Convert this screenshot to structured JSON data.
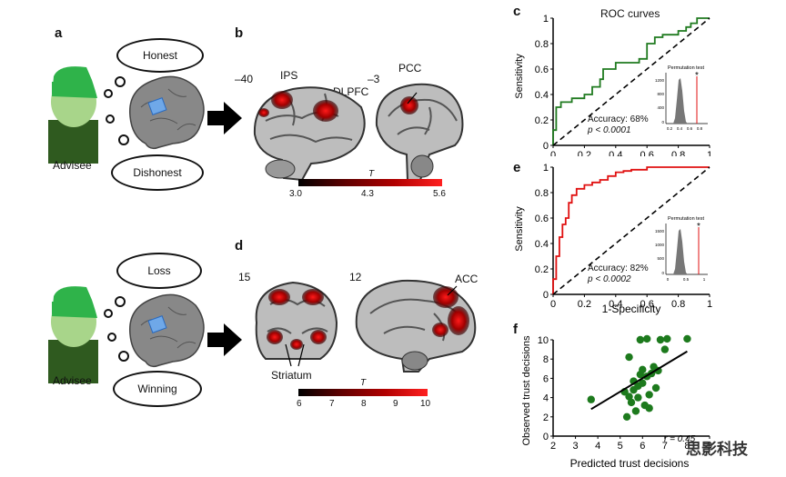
{
  "panels": {
    "a": {
      "label": "a",
      "advisee": "Advisee",
      "thought_top": "Honest",
      "thought_bottom": "Dishonest"
    },
    "a2": {
      "advisee": "Advisee",
      "thought_top": "Loss",
      "thought_bottom": "Winning"
    },
    "b": {
      "label": "b",
      "slice_left": "–40",
      "slice_right": "–3",
      "regions": [
        "IPS",
        "DLPFC",
        "PCC"
      ],
      "colorbar": {
        "title": "T",
        "ticks": [
          "3.0",
          "4.3",
          "5.6"
        ]
      }
    },
    "d": {
      "label": "d",
      "slice_left": "15",
      "slice_right": "12",
      "regions": [
        "Striatum",
        "ACC"
      ],
      "colorbar": {
        "title": "T",
        "ticks": [
          "6",
          "7",
          "8",
          "9",
          "10"
        ]
      }
    },
    "c": {
      "label": "c",
      "title": "ROC curves",
      "ylabel": "Sensitivity",
      "accuracy": "Accuracy: 68%",
      "pvalue": "p < 0.0001",
      "perm_title": "Permutation test",
      "perm_yticks": [
        "1200",
        "800",
        "400",
        "0"
      ],
      "perm_xticks": [
        "0.2",
        "0.4",
        "0.6",
        "0.8"
      ],
      "star": "*",
      "color": "#1f7a1f"
    },
    "e": {
      "label": "e",
      "ylabel": "Sensitivity",
      "xlabel": "1-Specificity",
      "accuracy": "Accuracy: 82%",
      "pvalue": "p < 0.0002",
      "perm_title": "Permutation test",
      "perm_yticks": [
        "1500",
        "1000",
        "500",
        "0"
      ],
      "perm_xticks": [
        "0",
        "0.5",
        "1"
      ],
      "star": "*",
      "color": "#e01010"
    },
    "f": {
      "label": "f",
      "r_text": "r = 0.45",
      "ylabel": "Observed trust decisions",
      "xlabel": "Predicted trust decisions",
      "color": "#1d7a1d"
    }
  },
  "watermark": "思影科技",
  "chart_data": [
    {
      "type": "line",
      "panel": "c",
      "title": "ROC curves",
      "xlabel": "",
      "ylabel": "Sensitivity",
      "xlim": [
        0,
        1
      ],
      "ylim": [
        0,
        1
      ],
      "xticks": [
        "0",
        "0.2",
        "0.4",
        "0.6",
        "0.8",
        "1"
      ],
      "yticks": [
        "0",
        "0.2",
        "0.4",
        "0.6",
        "0.8",
        "1"
      ],
      "series": [
        {
          "x": [
            0,
            0,
            0.02,
            0.02,
            0.05,
            0.05,
            0.12,
            0.12,
            0.2,
            0.2,
            0.25,
            0.25,
            0.3,
            0.3,
            0.32,
            0.32,
            0.4,
            0.4,
            0.55,
            0.55,
            0.6,
            0.6,
            0.65,
            0.65,
            0.7,
            0.7,
            0.8,
            0.8,
            0.85,
            0.85,
            0.88,
            0.88,
            0.92,
            0.92,
            1.0
          ],
          "y": [
            0,
            0.12,
            0.12,
            0.3,
            0.3,
            0.34,
            0.34,
            0.37,
            0.37,
            0.4,
            0.4,
            0.46,
            0.46,
            0.52,
            0.52,
            0.6,
            0.6,
            0.65,
            0.65,
            0.68,
            0.68,
            0.8,
            0.8,
            0.85,
            0.85,
            0.87,
            0.87,
            0.9,
            0.9,
            0.93,
            0.93,
            0.96,
            0.96,
            1.0,
            1.0
          ]
        },
        {
          "x": [
            0,
            1
          ],
          "y": [
            0,
            1
          ]
        }
      ]
    },
    {
      "type": "line",
      "panel": "e",
      "title": "",
      "xlabel": "1-Specificity",
      "ylabel": "Sensitivity",
      "xlim": [
        0,
        1
      ],
      "ylim": [
        0,
        1
      ],
      "xticks": [
        "0",
        "0.2",
        "0.4",
        "0.6",
        "0.8",
        "1"
      ],
      "yticks": [
        "0",
        "0.2",
        "0.4",
        "0.6",
        "0.8",
        "1"
      ],
      "series": [
        {
          "x": [
            0,
            0,
            0.02,
            0.02,
            0.04,
            0.04,
            0.06,
            0.06,
            0.08,
            0.08,
            0.1,
            0.1,
            0.12,
            0.12,
            0.15,
            0.15,
            0.2,
            0.2,
            0.25,
            0.25,
            0.3,
            0.3,
            0.35,
            0.35,
            0.4,
            0.4,
            0.45,
            0.45,
            0.5,
            0.5,
            0.6,
            0.6,
            1.0
          ],
          "y": [
            0,
            0.12,
            0.12,
            0.3,
            0.3,
            0.45,
            0.45,
            0.55,
            0.55,
            0.6,
            0.6,
            0.72,
            0.72,
            0.78,
            0.78,
            0.83,
            0.83,
            0.86,
            0.86,
            0.88,
            0.88,
            0.9,
            0.9,
            0.93,
            0.93,
            0.96,
            0.96,
            0.97,
            0.97,
            0.98,
            0.98,
            1.0,
            1.0
          ]
        },
        {
          "x": [
            0,
            1
          ],
          "y": [
            0,
            1
          ]
        }
      ]
    },
    {
      "type": "scatter",
      "panel": "f",
      "title": "",
      "xlabel": "Predicted trust decisions",
      "ylabel": "Observed trust decisions",
      "xlim": [
        2,
        9
      ],
      "ylim": [
        0,
        10
      ],
      "xticks": [
        "2",
        "3",
        "4",
        "5",
        "6",
        "7",
        "8",
        "9"
      ],
      "yticks": [
        "0",
        "2",
        "4",
        "6",
        "8",
        "10"
      ],
      "series": [
        {
          "x": [
            3.7,
            5.3,
            5.4,
            5.6,
            5.8,
            6.0,
            6.2,
            5.9,
            6.4,
            6.7,
            6.1,
            5.2,
            5.5,
            5.8,
            6.3,
            6.6,
            5.6,
            6.0,
            6.5,
            5.4,
            7.0,
            5.9,
            6.2,
            6.8,
            7.1,
            5.7,
            6.3,
            8.0
          ],
          "y": [
            3.8,
            2.0,
            4.1,
            4.8,
            5.2,
            5.5,
            6.2,
            6.4,
            6.5,
            6.8,
            3.2,
            4.6,
            3.5,
            4.0,
            4.3,
            5.0,
            5.7,
            6.9,
            7.2,
            8.2,
            9.0,
            10.0,
            10.1,
            10.0,
            10.1,
            2.6,
            2.9,
            10.1
          ]
        },
        {
          "x": [
            3.7,
            8.0
          ],
          "y": [
            2.8,
            8.8
          ]
        }
      ]
    }
  ]
}
